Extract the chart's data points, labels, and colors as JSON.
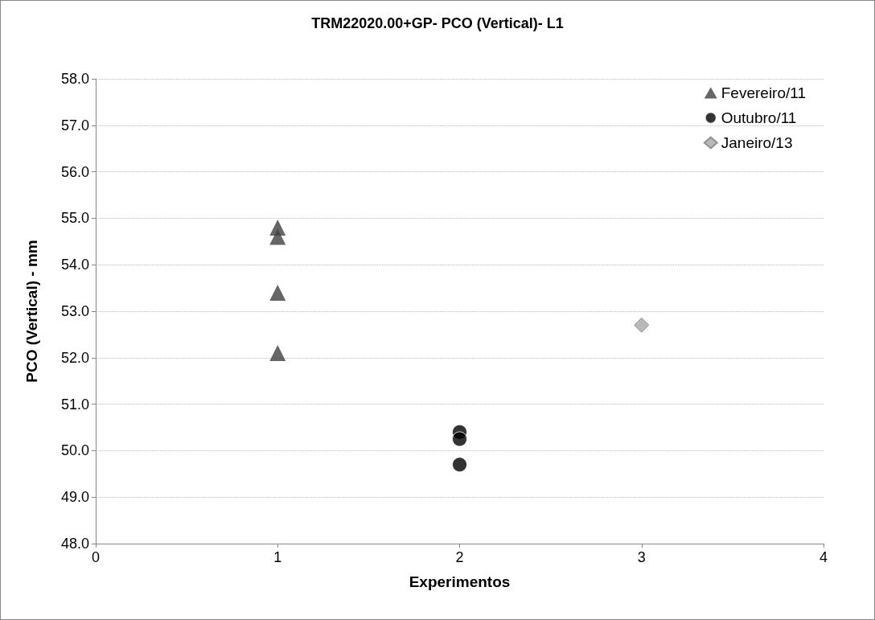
{
  "chart_data": {
    "type": "scatter",
    "title": "TRM22020.00+GP- PCO (Vertical)- L1",
    "xlabel": "Experimentos",
    "ylabel": "PCO (Vertical) - mm",
    "xlim": [
      0,
      4
    ],
    "xticks": [
      0,
      1,
      2,
      3,
      4
    ],
    "ylim": [
      48,
      58
    ],
    "yticks": [
      {
        "value": 48,
        "label": "48.0"
      },
      {
        "value": 49,
        "label": "49.0"
      },
      {
        "value": 50,
        "label": "50.0"
      },
      {
        "value": 51,
        "label": "51.0"
      },
      {
        "value": 52,
        "label": "52.0"
      },
      {
        "value": 53,
        "label": "53.0"
      },
      {
        "value": 54,
        "label": "54.0"
      },
      {
        "value": 55,
        "label": "55.0"
      },
      {
        "value": 56,
        "label": "56.0"
      },
      {
        "value": 57,
        "label": "57.0"
      },
      {
        "value": 58,
        "label": "58.0"
      }
    ],
    "grid": "y",
    "legend": "top right",
    "series": [
      {
        "name": "Fevereiro/11",
        "color": "#404040",
        "marker": "triangle",
        "x": [
          1,
          1,
          1,
          1
        ],
        "values": [
          54.8,
          54.6,
          53.4,
          52.1
        ]
      },
      {
        "name": "Outubro/11",
        "color": "#000000",
        "marker": "circle",
        "x": [
          2,
          2,
          2
        ],
        "values": [
          50.4,
          50.25,
          49.7
        ]
      },
      {
        "name": "Janeiro/13",
        "color": "#a6a6a6",
        "marker": "diamond",
        "x": [
          3
        ],
        "values": [
          52.7
        ]
      }
    ]
  }
}
